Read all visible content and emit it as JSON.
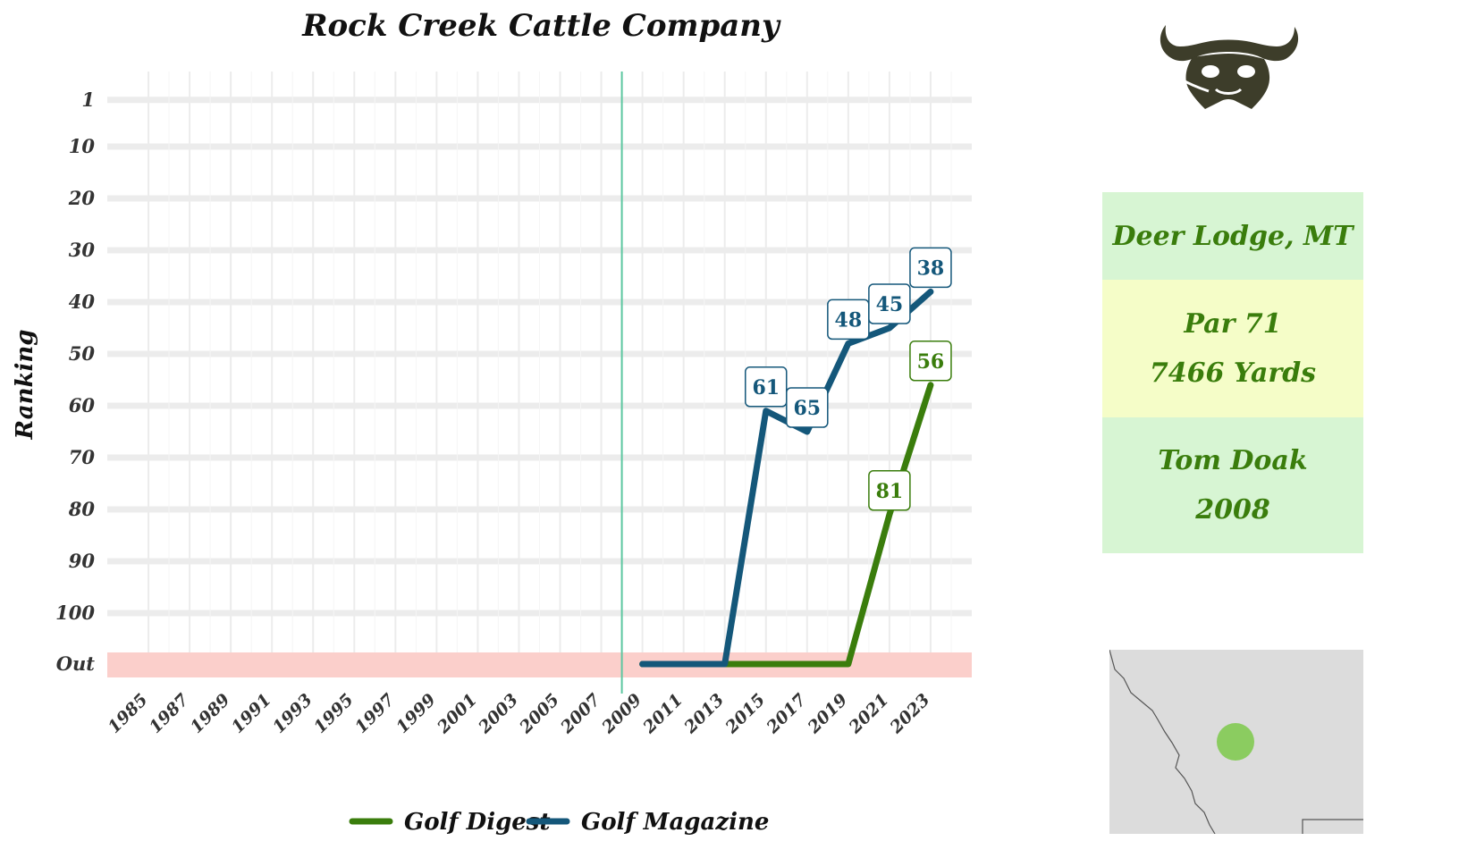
{
  "chart_data": {
    "type": "line",
    "title": "Rock Creek Cattle Company",
    "ylabel": "Ranking",
    "xlabel": "",
    "x_ticks": [
      "1985",
      "1987",
      "1989",
      "1991",
      "1993",
      "1995",
      "1997",
      "1999",
      "2001",
      "2003",
      "2005",
      "2007",
      "2009",
      "2011",
      "2013",
      "2015",
      "2017",
      "2019",
      "2021",
      "2023"
    ],
    "y_ticks": [
      "1",
      "10",
      "20",
      "30",
      "40",
      "50",
      "60",
      "70",
      "80",
      "90",
      "100",
      "Out"
    ],
    "x_range": [
      1983,
      2025
    ],
    "y_range": [
      1,
      110
    ],
    "out_band": "Out",
    "reference_line_year": 2008,
    "grid": true,
    "legend_position": "bottom",
    "series": [
      {
        "name": "Golf Digest",
        "color": "#3a7d0c",
        "points": [
          {
            "x": 2009,
            "y": "Out"
          },
          {
            "x": 2011,
            "y": "Out"
          },
          {
            "x": 2013,
            "y": "Out"
          },
          {
            "x": 2015,
            "y": "Out"
          },
          {
            "x": 2017,
            "y": "Out"
          },
          {
            "x": 2019,
            "y": "Out"
          },
          {
            "x": 2021,
            "y": 81,
            "label": "81"
          },
          {
            "x": 2023,
            "y": 56,
            "label": "56"
          }
        ]
      },
      {
        "name": "Golf Magazine",
        "color": "#14577a",
        "points": [
          {
            "x": 2009,
            "y": "Out"
          },
          {
            "x": 2011,
            "y": "Out"
          },
          {
            "x": 2013,
            "y": "Out"
          },
          {
            "x": 2015,
            "y": 61,
            "label": "61"
          },
          {
            "x": 2017,
            "y": 65,
            "label": "65"
          },
          {
            "x": 2019,
            "y": 48,
            "label": "48"
          },
          {
            "x": 2021,
            "y": 45,
            "label": "45"
          },
          {
            "x": 2023,
            "y": 38,
            "label": "38"
          }
        ]
      }
    ]
  },
  "info": {
    "location": "Deer Lodge, MT",
    "par": "Par 71",
    "yards": "7466 Yards",
    "architect": "Tom Doak",
    "year": "2008"
  },
  "colors": {
    "out_band": "#fbcfcb",
    "reference_line": "#5cc7a0",
    "grid": "#ececec",
    "panel_green": "#d7f5d3",
    "panel_yellow": "#f5fdc8",
    "panel_text": "#3a7d0c",
    "map_background": "#dcdcdc",
    "map_marker": "#7cc94a"
  },
  "icons": {
    "logo": "cattle-skull-icon"
  }
}
